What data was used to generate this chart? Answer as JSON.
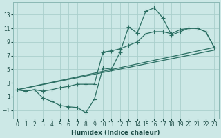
{
  "xlabel": "Humidex (Indice chaleur)",
  "bg_color": "#cce8e6",
  "grid_color": "#aacfcc",
  "line_color": "#2a6e62",
  "xlim": [
    -0.5,
    23.5
  ],
  "ylim": [
    -2.2,
    14.8
  ],
  "xticks": [
    0,
    1,
    2,
    3,
    4,
    5,
    6,
    7,
    8,
    9,
    10,
    11,
    12,
    13,
    14,
    15,
    16,
    17,
    18,
    19,
    20,
    21,
    22,
    23
  ],
  "yticks": [
    -1,
    1,
    3,
    5,
    7,
    9,
    11,
    13
  ],
  "series1_x": [
    0,
    1,
    2,
    3,
    4,
    5,
    6,
    7,
    8,
    9,
    10,
    11,
    12,
    13,
    14,
    15,
    16,
    17,
    18,
    19,
    20,
    21,
    22,
    23
  ],
  "series1_y": [
    2.0,
    1.8,
    2.0,
    0.8,
    0.3,
    -0.3,
    -0.5,
    -0.6,
    -1.35,
    0.6,
    5.2,
    5.0,
    7.5,
    11.2,
    10.3,
    13.5,
    14.0,
    12.5,
    10.0,
    10.5,
    11.0,
    11.0,
    10.5,
    8.2
  ],
  "series2_x": [
    0,
    1,
    2,
    3,
    4,
    5,
    6,
    7,
    8,
    9,
    10,
    11,
    12,
    13,
    14,
    15,
    16,
    17,
    18,
    19,
    20,
    21,
    22,
    23
  ],
  "series2_y": [
    2.0,
    1.8,
    2.0,
    1.8,
    2.0,
    2.3,
    2.5,
    2.8,
    2.8,
    2.8,
    7.5,
    7.7,
    8.0,
    8.5,
    9.0,
    10.2,
    10.5,
    10.5,
    10.2,
    10.8,
    11.0,
    11.0,
    10.5,
    8.2
  ],
  "series3_x": [
    0,
    23
  ],
  "series3_y": [
    2.0,
    8.2
  ],
  "series4_x": [
    0,
    23
  ],
  "series4_y": [
    2.0,
    7.8
  ]
}
